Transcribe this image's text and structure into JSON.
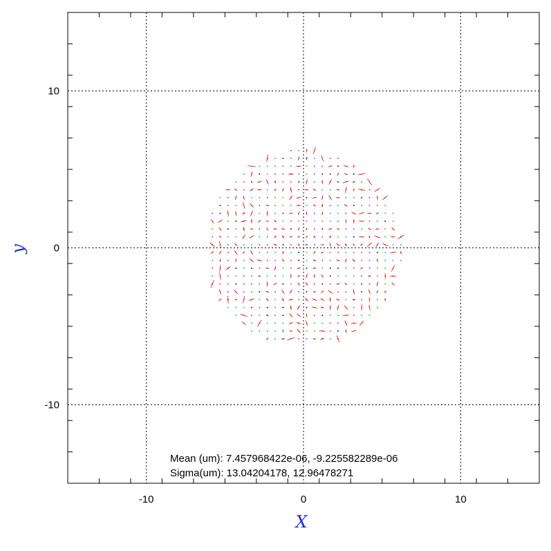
{
  "chart_data": {
    "type": "scatter",
    "title": "",
    "xlabel": "X",
    "ylabel": "y",
    "xlim": [
      -15,
      15
    ],
    "ylim": [
      -15,
      15
    ],
    "grid": true,
    "x_tick_values": [
      -10,
      0,
      10
    ],
    "y_tick_values": [
      -10,
      0,
      10
    ],
    "x_tick_labels": [
      "-10",
      "0",
      "10"
    ],
    "y_tick_labels": [
      "-10",
      "0",
      "10"
    ],
    "pattern": {
      "shape": "disk",
      "center": [
        0,
        0
      ],
      "radius": 6.3,
      "grid_step": 0.5
    },
    "marker_colors": {
      "green": "#00c000",
      "magenta": "#d000d0",
      "cyan": "#00b0b0",
      "black": "#000000",
      "red": "#ff0000"
    },
    "stats": {
      "mean_label": "Mean (um): 7.457968422e-06, -9.225582289e-06",
      "sigma_label": "Sigma(um): 13.04204178, 12.96478271"
    }
  }
}
